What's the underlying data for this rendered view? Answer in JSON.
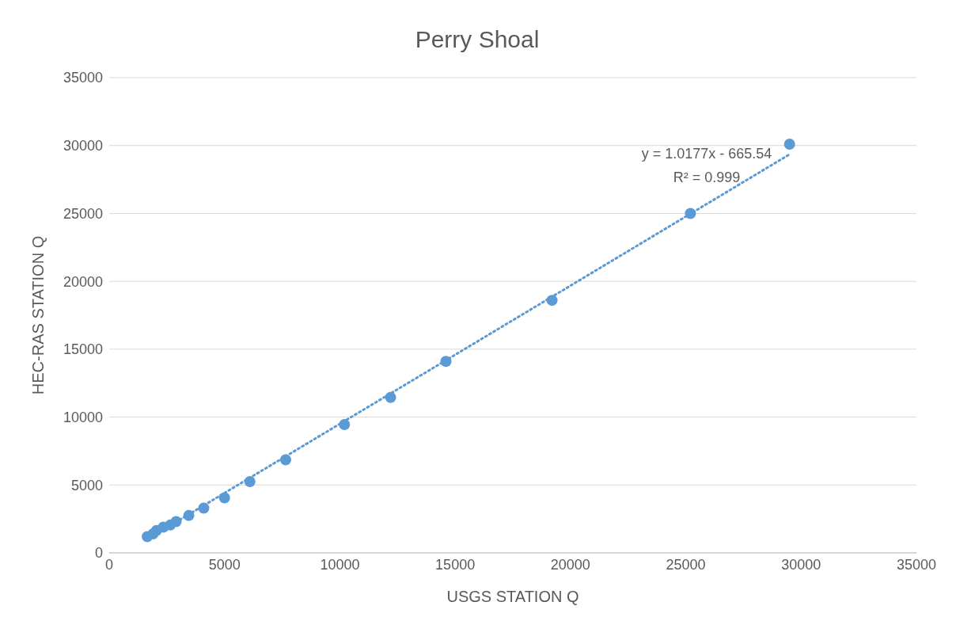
{
  "chart_data": {
    "type": "scatter",
    "title": "Perry Shoal",
    "xlabel": "USGS STATION Q",
    "ylabel": "HEC-RAS STATION Q",
    "xlim": [
      0,
      35000
    ],
    "xticks": [
      0,
      5000,
      10000,
      15000,
      20000,
      25000,
      30000,
      35000
    ],
    "ylim": [
      0,
      35000
    ],
    "yticks": [
      0,
      5000,
      10000,
      15000,
      20000,
      25000,
      30000,
      35000
    ],
    "grid": "y",
    "marker": "circle",
    "series": [
      {
        "color": "#5b9bd5",
        "x": [
          1650,
          1900,
          2050,
          2350,
          2650,
          2900,
          3450,
          4100,
          5000,
          6100,
          7650,
          10200,
          12200,
          14600,
          19200,
          25200,
          29500
        ],
        "values": [
          1200,
          1400,
          1650,
          1900,
          2050,
          2300,
          2750,
          3300,
          4050,
          5250,
          6850,
          9450,
          11450,
          14100,
          18600,
          25000,
          30100
        ]
      },
      {
        "type": "line",
        "color": "#5b9bd5",
        "line_style": "dotted",
        "marker": "none",
        "x": [
          1650,
          29500
        ],
        "values": [
          1000,
          29350
        ]
      }
    ],
    "annotations": [
      "y = 1.0177x - 665.54",
      "R² = 0.999"
    ]
  }
}
